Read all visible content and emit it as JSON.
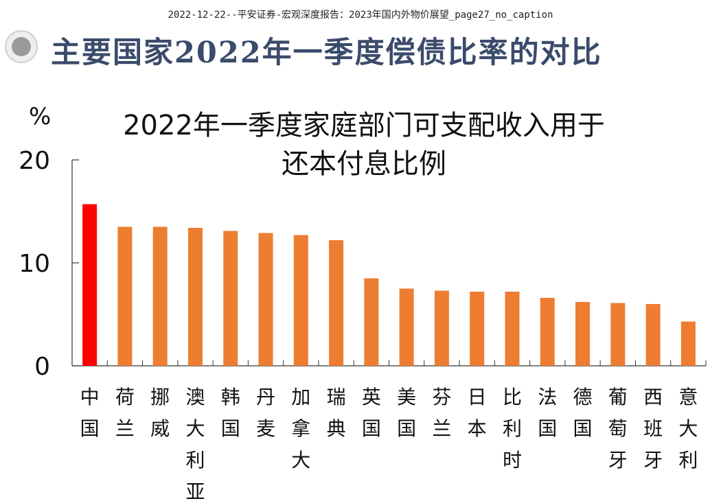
{
  "document": {
    "header": "2022-12-22--平安证券-宏观深度报告：2023年国内外物价展望_page27_no_caption",
    "slide_title": "主要国家2022年一季度偿债比率的对比"
  },
  "chart_data": {
    "type": "bar",
    "title_line1": "2022年一季度家庭部门可支配收入用于",
    "title_line2": "还本付息比例",
    "ylabel": "%",
    "ylim": [
      0,
      20
    ],
    "yticks": [
      0,
      10,
      20
    ],
    "categories": [
      "中国",
      "荷兰",
      "挪威",
      "澳大利亚",
      "韩国",
      "丹麦",
      "加拿大",
      "瑞典",
      "英国",
      "美国",
      "芬兰",
      "日本",
      "比利时",
      "法国",
      "德国",
      "葡萄牙",
      "西班牙",
      "意大利"
    ],
    "values": [
      15.7,
      13.5,
      13.5,
      13.4,
      13.1,
      12.9,
      12.7,
      12.2,
      8.5,
      7.5,
      7.3,
      7.2,
      7.2,
      6.6,
      6.2,
      6.1,
      6.0,
      4.3
    ],
    "highlight_index": 0,
    "colors": {
      "highlight": "#ff0000",
      "default": "#ed7d31"
    }
  }
}
